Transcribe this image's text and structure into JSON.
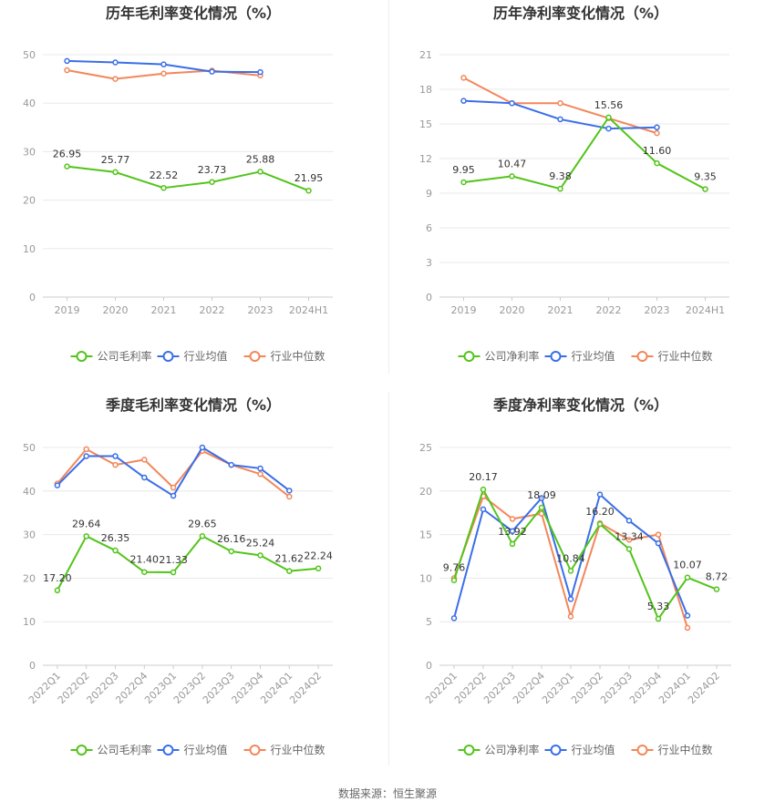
{
  "source_label": "数据来源：恒生聚源",
  "legend": {
    "gross": [
      "公司毛利率",
      "行业均值",
      "行业中位数"
    ],
    "net": [
      "公司净利率",
      "行业均值",
      "行业中位数"
    ]
  },
  "colors": {
    "company": "#52c41a",
    "avg": "#3a6ee8",
    "median": "#f2875a",
    "grid": "#e8e8e8",
    "axis": "#cccccc",
    "tick": "#999999"
  },
  "chart_data": [
    {
      "type": "line",
      "title": "历年毛利率变化情况（%）",
      "categories": [
        "2019",
        "2020",
        "2021",
        "2022",
        "2023",
        "2024H1"
      ],
      "ylim": [
        0,
        50
      ],
      "yticks": [
        0,
        10,
        20,
        30,
        40,
        50
      ],
      "grid": true,
      "legend_position": "bottom",
      "rotate_x": false,
      "series": [
        {
          "name": "公司毛利率",
          "role": "company",
          "values": [
            26.95,
            25.77,
            22.52,
            23.73,
            25.88,
            21.95
          ],
          "labels": [
            "26.95",
            "25.77",
            "22.52",
            "23.73",
            "25.88",
            "21.95"
          ]
        },
        {
          "name": "行业均值",
          "role": "avg",
          "values": [
            48.7,
            48.4,
            48.0,
            46.5,
            46.4,
            null
          ]
        },
        {
          "name": "行业中位数",
          "role": "median",
          "values": [
            46.8,
            45.0,
            46.1,
            46.7,
            45.7,
            null
          ]
        }
      ]
    },
    {
      "type": "line",
      "title": "历年净利率变化情况（%）",
      "categories": [
        "2019",
        "2020",
        "2021",
        "2022",
        "2023",
        "2024H1"
      ],
      "ylim": [
        0,
        21
      ],
      "yticks": [
        0,
        3,
        6,
        9,
        12,
        15,
        18,
        21
      ],
      "grid": true,
      "legend_position": "bottom",
      "rotate_x": false,
      "series": [
        {
          "name": "公司净利率",
          "role": "company",
          "values": [
            9.95,
            10.47,
            9.38,
            15.56,
            11.6,
            9.35
          ],
          "labels": [
            "9.95",
            "10.47",
            "9.38",
            "15.56",
            "11.60",
            "9.35"
          ]
        },
        {
          "name": "行业均值",
          "role": "avg",
          "values": [
            17.0,
            16.8,
            15.4,
            14.6,
            14.7,
            null
          ]
        },
        {
          "name": "行业中位数",
          "role": "median",
          "values": [
            19.0,
            16.8,
            16.8,
            15.5,
            14.2,
            null
          ]
        }
      ]
    },
    {
      "type": "line",
      "title": "季度毛利率变化情况（%）",
      "categories": [
        "2022Q1",
        "2022Q2",
        "2022Q3",
        "2022Q4",
        "2023Q1",
        "2023Q2",
        "2023Q3",
        "2023Q4",
        "2024Q1",
        "2024Q2"
      ],
      "ylim": [
        0,
        50
      ],
      "yticks": [
        0,
        10,
        20,
        30,
        40,
        50
      ],
      "grid": true,
      "legend_position": "bottom",
      "rotate_x": true,
      "series": [
        {
          "name": "公司毛利率",
          "role": "company",
          "values": [
            17.2,
            29.64,
            26.35,
            21.4,
            21.33,
            29.65,
            26.16,
            25.24,
            21.62,
            22.24
          ],
          "labels": [
            "17.20",
            "29.64",
            "26.35",
            "21.40",
            "21.33",
            "29.65",
            "26.16",
            "25.24",
            "21.62",
            "22.24"
          ]
        },
        {
          "name": "行业均值",
          "role": "avg",
          "values": [
            41.3,
            48.0,
            48.0,
            43.1,
            38.9,
            50.0,
            46.0,
            45.2,
            40.1,
            null
          ]
        },
        {
          "name": "行业中位数",
          "role": "median",
          "values": [
            41.7,
            49.6,
            46.0,
            47.2,
            40.8,
            49.2,
            46.0,
            43.9,
            38.7,
            null
          ]
        }
      ]
    },
    {
      "type": "line",
      "title": "季度净利率变化情况（%）",
      "categories": [
        "2022Q1",
        "2022Q2",
        "2022Q3",
        "2022Q4",
        "2023Q1",
        "2023Q2",
        "2023Q3",
        "2023Q4",
        "2024Q1",
        "2024Q2"
      ],
      "ylim": [
        0,
        25
      ],
      "yticks": [
        0,
        5,
        10,
        15,
        20,
        25
      ],
      "grid": true,
      "legend_position": "bottom",
      "rotate_x": true,
      "series": [
        {
          "name": "公司净利率",
          "role": "company",
          "values": [
            9.76,
            20.17,
            13.92,
            18.09,
            10.84,
            16.2,
            13.34,
            5.33,
            10.07,
            8.72
          ],
          "labels": [
            "9.76",
            "20.17",
            "13.92",
            "18.09",
            "10.84",
            "16.20",
            "13.34",
            "5.33",
            "10.07",
            "8.72"
          ]
        },
        {
          "name": "行业均值",
          "role": "avg",
          "values": [
            5.4,
            17.9,
            15.4,
            19.2,
            7.6,
            19.6,
            16.6,
            14.0,
            5.7,
            null
          ]
        },
        {
          "name": "行业中位数",
          "role": "median",
          "values": [
            10.0,
            19.4,
            16.8,
            17.4,
            5.6,
            16.3,
            14.4,
            15.0,
            4.3,
            null
          ]
        }
      ]
    }
  ]
}
